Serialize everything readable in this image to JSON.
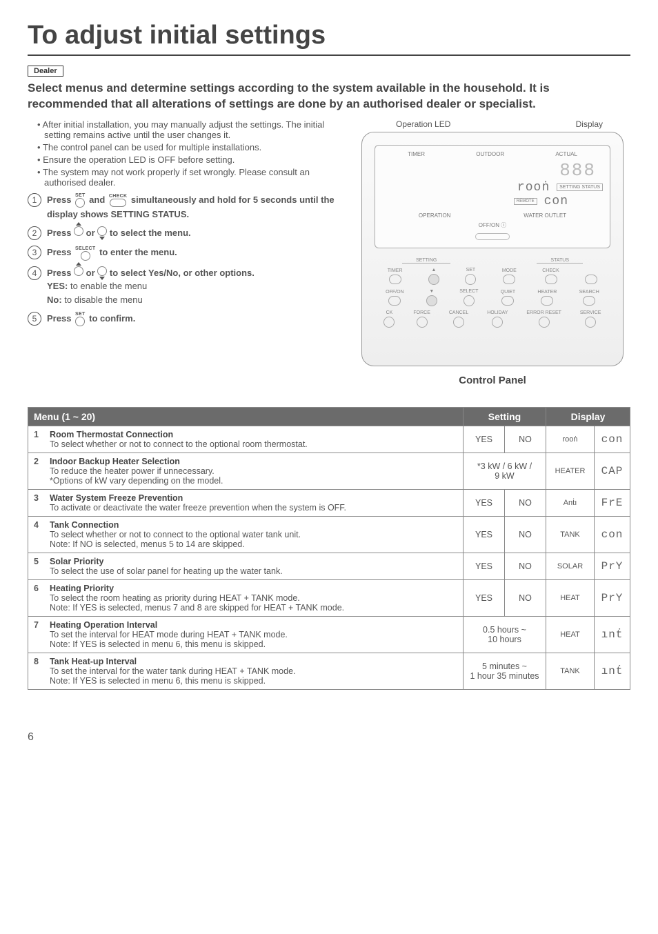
{
  "title": "To adjust initial settings",
  "dealer_label": "Dealer",
  "intro": "Select menus and determine settings according to the system available in the household. It is recommended that all alterations of settings are done by an authorised dealer or specialist.",
  "bullets": [
    "After initial installation, you may manually adjust the settings. The initial setting remains active until the user changes it.",
    "The control panel can be used for multiple installations.",
    "Ensure the operation LED is OFF before setting.",
    "The system may not work properly if set wrongly. Please consult an authorised dealer."
  ],
  "steps": {
    "s1a": "Press ",
    "s1b": " and ",
    "s1c": " simultaneously and hold for 5 seconds until the display shows SETTING STATUS.",
    "s2a": "Press ",
    "s2b": " or ",
    "s2c": " to select the menu.",
    "s3a": "Press ",
    "s3b": " to enter the menu.",
    "s4a": "Press ",
    "s4b": " or ",
    "s4c": " to select Yes/No, or other options.",
    "s4yes": "YES:",
    "s4yest": " to enable the menu",
    "s4no": "No:",
    "s4not": " to disable the menu",
    "s5a": "Press ",
    "s5b": " to confirm."
  },
  "icon_labels": {
    "set": "SET",
    "check": "CHECK",
    "select": "SELECT"
  },
  "panel": {
    "op_led": "Operation LED",
    "display": "Display",
    "caption": "Control Panel",
    "lcd": {
      "timer": "TIMER",
      "outdoor": "OUTDOOR",
      "actual": "ACTUAL",
      "seg888": "888",
      "room_seg": "rooṅ",
      "status": "SETTING STATUS",
      "remote": "REMOTE",
      "con_seg": "con",
      "operation": "OPERATION",
      "water": "WATER OUTLET",
      "offon": "OFF/ON ⓘ",
      "setting": "SETTING",
      "status2": "STATUS"
    },
    "keys": {
      "timer": "TIMER",
      "set": "SET",
      "mode": "MODE",
      "check": "CHECK",
      "offon": "OFF/ON",
      "select": "SELECT",
      "quiet": "QUIET",
      "heater": "HEATER",
      "search": "SEARCH",
      "clock": "CK",
      "force": "FORCE",
      "cancel": "CANCEL",
      "holiday": "HOLIDAY",
      "error": "ERROR RESET",
      "service": "SERVICE"
    }
  },
  "table": {
    "headers": {
      "menu": "Menu (1 ~ 20)",
      "setting": "Setting",
      "display": "Display"
    },
    "rows": [
      {
        "n": "1",
        "title": "Room Thermostat Connection",
        "desc": "To select whether or not to connect to the optional room thermostat.",
        "set1": "YES",
        "set2": "NO",
        "disp": "rooṅ",
        "seg": "con"
      },
      {
        "n": "2",
        "title": "Indoor Backup Heater Selection",
        "desc": "To reduce the heater power if unnecessary.\n*Options of kW vary depending on the model.",
        "set_wide": "*3 kW / 6 kW /\n9 kW",
        "disp": "HEATER",
        "seg": "CAP"
      },
      {
        "n": "3",
        "title": "Water System Freeze Prevention",
        "desc": "To activate or deactivate the water freeze prevention when the system is OFF.",
        "set1": "YES",
        "set2": "NO",
        "disp": "Anṫı",
        "seg": "FrE"
      },
      {
        "n": "4",
        "title": "Tank Connection",
        "desc": "To select whether or not to connect to the optional water tank unit.\nNote: If NO is selected, menus 5 to 14 are skipped.",
        "set1": "YES",
        "set2": "NO",
        "disp": "TANK",
        "seg": "con"
      },
      {
        "n": "5",
        "title": "Solar Priority",
        "desc": "To select the use of solar panel for heating up the water tank.",
        "set1": "YES",
        "set2": "NO",
        "disp": "SOLAR",
        "seg": "PrY"
      },
      {
        "n": "6",
        "title": "Heating Priority",
        "desc": "To select the room heating as priority during HEAT + TANK mode.\nNote: If YES is selected, menus 7 and 8 are skipped for HEAT + TANK mode.",
        "set1": "YES",
        "set2": "NO",
        "disp": "HEAT",
        "seg": "PrY"
      },
      {
        "n": "7",
        "title": "Heating Operation Interval",
        "desc": "To set the interval for HEAT mode during HEAT + TANK mode.\nNote: If YES is selected in menu 6, this menu is skipped.",
        "set_wide": "0.5 hours ~\n10 hours",
        "disp": "HEAT",
        "seg": "ınṫ"
      },
      {
        "n": "8",
        "title": "Tank Heat-up Interval",
        "desc": "To set the interval for the water tank during HEAT + TANK mode.\nNote: If YES is selected in menu 6, this menu is skipped.",
        "set_wide": "5 minutes ~\n1 hour 35 minutes",
        "disp": "TANK",
        "seg": "ınṫ"
      }
    ]
  },
  "page_number": "6"
}
